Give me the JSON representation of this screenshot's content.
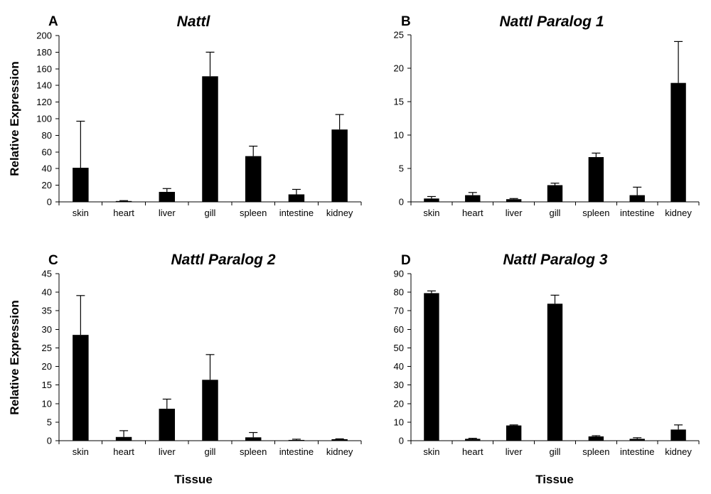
{
  "shared_xlabel": "Tissue",
  "chart_data": [
    {
      "type": "bar",
      "letter": "A",
      "title": "Nattl",
      "ylabel": "Relative Expression",
      "xlabel": "",
      "ylim": [
        0,
        200
      ],
      "yticks": [
        0,
        20,
        40,
        60,
        80,
        100,
        120,
        140,
        160,
        180,
        200
      ],
      "categories": [
        "skin",
        "heart",
        "liver",
        "gill",
        "spleen",
        "intestine",
        "kidney"
      ],
      "values": [
        41,
        1,
        12,
        151,
        55,
        9,
        87
      ],
      "errors": [
        56,
        0.5,
        4,
        29,
        12,
        6,
        18
      ]
    },
    {
      "type": "bar",
      "letter": "B",
      "title": "Nattl Paralog 1",
      "ylabel": "",
      "xlabel": "",
      "ylim": [
        0,
        25
      ],
      "yticks": [
        0,
        5,
        10,
        15,
        20,
        25
      ],
      "categories": [
        "skin",
        "heart",
        "liver",
        "gill",
        "spleen",
        "intestine",
        "kidney"
      ],
      "values": [
        0.5,
        1.0,
        0.4,
        2.5,
        6.7,
        1.0,
        17.8
      ],
      "errors": [
        0.3,
        0.4,
        0.1,
        0.3,
        0.6,
        1.2,
        6.2
      ]
    },
    {
      "type": "bar",
      "letter": "C",
      "title": "Nattl Paralog 2",
      "ylabel": "Relative Expression",
      "xlabel": "",
      "ylim": [
        0,
        45
      ],
      "yticks": [
        0,
        5,
        10,
        15,
        20,
        25,
        30,
        35,
        40,
        45
      ],
      "categories": [
        "skin",
        "heart",
        "liver",
        "gill",
        "spleen",
        "intestine",
        "kidney"
      ],
      "values": [
        28.5,
        1.0,
        8.6,
        16.4,
        0.9,
        0.2,
        0.4
      ],
      "errors": [
        10.6,
        1.7,
        2.6,
        6.8,
        1.3,
        0.2,
        0.1
      ]
    },
    {
      "type": "bar",
      "letter": "D",
      "title": "Nattl Paralog 3",
      "ylabel": "",
      "xlabel": "",
      "ylim": [
        0,
        90
      ],
      "yticks": [
        0,
        10,
        20,
        30,
        40,
        50,
        60,
        70,
        80,
        90
      ],
      "categories": [
        "skin",
        "heart",
        "liver",
        "gill",
        "spleen",
        "intestine",
        "kidney"
      ],
      "values": [
        79.5,
        1.0,
        8.2,
        73.8,
        2.3,
        1.0,
        6.0
      ],
      "errors": [
        1.2,
        0.3,
        0.3,
        4.6,
        0.4,
        0.6,
        2.5
      ]
    }
  ]
}
